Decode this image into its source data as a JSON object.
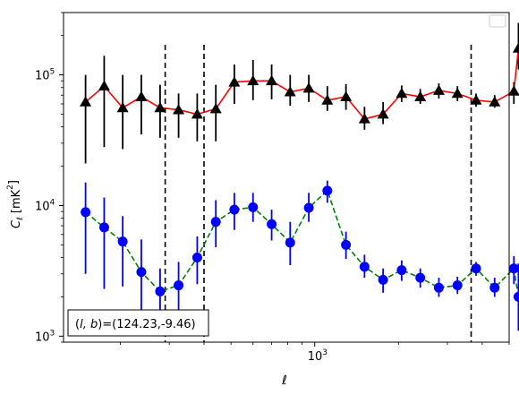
{
  "chart_data": {
    "type": "line",
    "title": "",
    "xlabel": "ℓ",
    "ylabel": "C_ℓ  [mK²]",
    "xscale": "log",
    "yscale": "log",
    "xlim": [
      125,
      5000
    ],
    "ylim": [
      900,
      300000
    ],
    "grid": false,
    "legend": "top-right",
    "x_tick_labels": [
      {
        "value": 1000,
        "base": "10",
        "exp": "3"
      }
    ],
    "y_tick_labels": [
      {
        "value": 1000,
        "base": "10",
        "exp": "3"
      },
      {
        "value": 10000,
        "base": "10",
        "exp": "4"
      },
      {
        "value": 100000,
        "base": "10",
        "exp": "5"
      }
    ],
    "vlines": [
      290,
      400,
      3650
    ],
    "annotation": "(l, b)=(124.23,-9.46)",
    "ell": [
      150,
      175,
      204,
      238,
      278,
      324,
      378,
      441,
      514,
      600,
      700,
      816,
      952,
      1110,
      1295,
      1510,
      1761,
      2054,
      2396,
      2794,
      3259,
      3802,
      4434,
      4600
    ],
    "series": [
      {
        "marker": "triangle",
        "marker_color": "#000000",
        "line_color": "#ff0000",
        "line_style": "solid",
        "values": [
          62000,
          82000,
          56000,
          68000,
          56000,
          54000,
          50000,
          55000,
          88000,
          90000,
          90000,
          74000,
          79000,
          64000,
          68000,
          46000,
          50000,
          72000,
          68000,
          76000,
          72000,
          64000,
          62000,
          75000,
          160000
        ],
        "ell": [
          150,
          175,
          204,
          238,
          278,
          324,
          378,
          441,
          514,
          600,
          700,
          816,
          952,
          1110,
          1295,
          1510,
          1761,
          2054,
          2396,
          2794,
          3259,
          3802,
          4434,
          5200,
          5400
        ],
        "err_low": [
          21000,
          28000,
          27000,
          35000,
          33000,
          33000,
          31000,
          31000,
          60000,
          64000,
          65000,
          58000,
          62000,
          53000,
          54000,
          38000,
          42000,
          62000,
          60000,
          66000,
          63000,
          57000,
          56000,
          60000,
          110000
        ],
        "err_high": [
          100000,
          140000,
          100000,
          100000,
          84000,
          72000,
          72000,
          84000,
          120000,
          130000,
          120000,
          100000,
          100000,
          82000,
          85000,
          57000,
          62000,
          83000,
          78000,
          86000,
          82000,
          72000,
          70000,
          88000,
          250000
        ]
      },
      {
        "marker": "circle",
        "marker_color": "#0000ff",
        "line_color": "#008000",
        "line_style": "dashed",
        "values": [
          8900,
          6800,
          5300,
          3100,
          2200,
          2450,
          4000,
          7500,
          9300,
          9700,
          7200,
          5200,
          9600,
          13000,
          5000,
          3400,
          2700,
          3200,
          2800,
          2350,
          2450,
          3300,
          2350,
          3300,
          2000
        ],
        "ell": [
          150,
          175,
          204,
          238,
          278,
          324,
          378,
          441,
          514,
          600,
          700,
          816,
          952,
          1110,
          1295,
          1510,
          1761,
          2054,
          2396,
          2794,
          3259,
          3802,
          4434,
          5200,
          5400
        ],
        "err_low": [
          3000,
          2300,
          2400,
          1450,
          1200,
          1400,
          2500,
          4800,
          6500,
          7500,
          5400,
          3500,
          7500,
          10500,
          3900,
          2800,
          2150,
          2650,
          2350,
          2000,
          2100,
          2900,
          2000,
          2500,
          1100
        ],
        "err_high": [
          15000,
          11500,
          8300,
          5500,
          3300,
          3700,
          5800,
          11000,
          12500,
          12500,
          9300,
          7500,
          12500,
          15500,
          6300,
          4200,
          3300,
          3800,
          3300,
          2800,
          2850,
          3700,
          2800,
          4100,
          3600
        ]
      }
    ]
  }
}
